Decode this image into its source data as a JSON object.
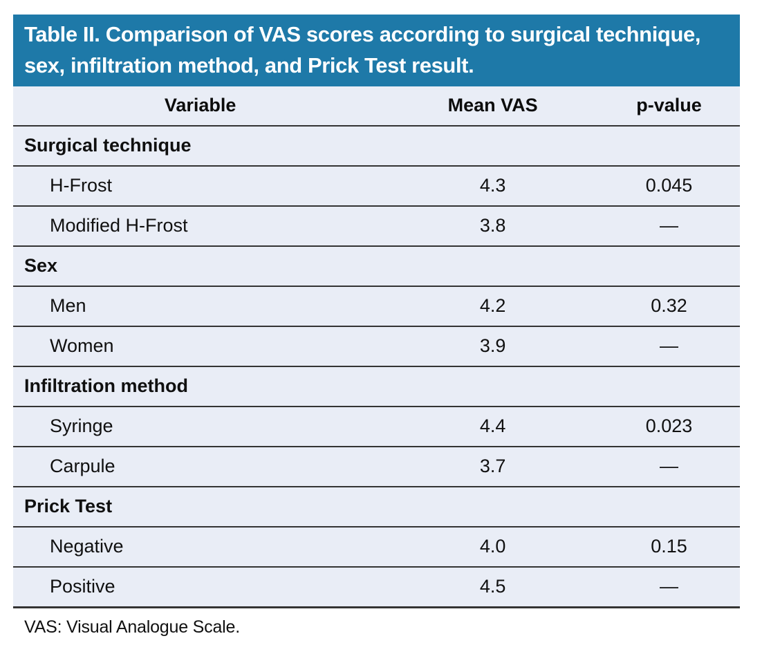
{
  "title": "Table II. Comparison of VAS scores according to surgical technique, sex, infiltration method, and Prick Test result.",
  "columns": [
    "Variable",
    "Mean VAS",
    "p-value"
  ],
  "sections": [
    {
      "label": "Surgical technique",
      "rows": [
        {
          "variable": "H-Frost",
          "mean_vas": "4.3",
          "p_value": "0.045"
        },
        {
          "variable": "Modified H-Frost",
          "mean_vas": "3.8",
          "p_value": "—"
        }
      ]
    },
    {
      "label": "Sex",
      "rows": [
        {
          "variable": "Men",
          "mean_vas": "4.2",
          "p_value": "0.32"
        },
        {
          "variable": "Women",
          "mean_vas": "3.9",
          "p_value": "—"
        }
      ]
    },
    {
      "label": "Infiltration method",
      "rows": [
        {
          "variable": "Syringe",
          "mean_vas": "4.4",
          "p_value": "0.023"
        },
        {
          "variable": "Carpule",
          "mean_vas": "3.7",
          "p_value": "—"
        }
      ]
    },
    {
      "label": "Prick Test",
      "rows": [
        {
          "variable": "Negative",
          "mean_vas": "4.0",
          "p_value": "0.15"
        },
        {
          "variable": "Positive",
          "mean_vas": "4.5",
          "p_value": "—"
        }
      ]
    }
  ],
  "footnote": "VAS: Visual Analogue Scale.",
  "colors": {
    "title_bg": "#1e79a8",
    "title_text": "#ffffff",
    "row_bg": "#e9edf6",
    "rule": "#333333",
    "body_text": "#101010"
  }
}
